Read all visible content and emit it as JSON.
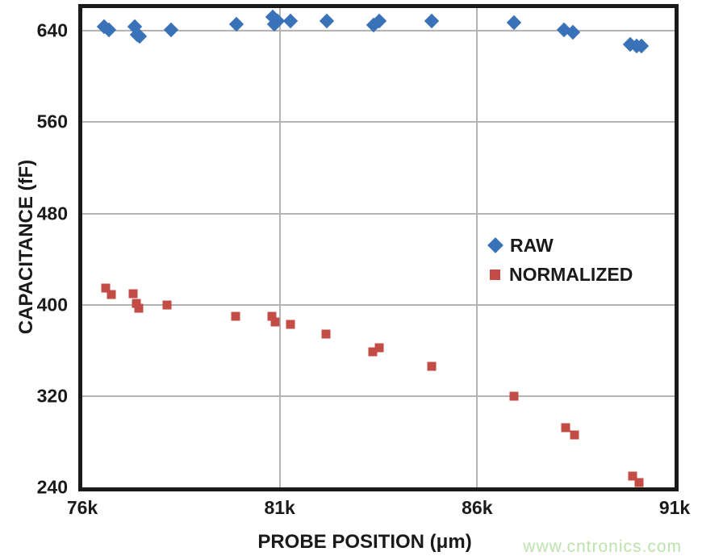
{
  "watermark": "www.cntronics.com",
  "colors": {
    "raw_blue": "#3a72b9",
    "normalized_red": "#c44c46",
    "gridline": "#b3b3b3",
    "axis_frame": "#1a1a1a",
    "watermark_green": "#bde1ab"
  },
  "chart_data": {
    "type": "scatter",
    "xlabel": "PROBE POSITION (μm)",
    "ylabel": "CAPACITANCE (fF)",
    "x_unit_suffix": "k",
    "xlim_k": [
      76,
      91
    ],
    "ylim": [
      240,
      660
    ],
    "x_ticks": [
      {
        "value": 76,
        "label": "76k"
      },
      {
        "value": 81,
        "label": "81k"
      },
      {
        "value": 86,
        "label": "86k"
      },
      {
        "value": 91,
        "label": "91k"
      }
    ],
    "y_ticks": [
      {
        "value": 640,
        "label": "640"
      },
      {
        "value": 560,
        "label": "560"
      },
      {
        "value": 480,
        "label": "480"
      },
      {
        "value": 400,
        "label": "400"
      },
      {
        "value": 320,
        "label": "320"
      },
      {
        "value": 240,
        "label": "240"
      }
    ],
    "x_gridlines_k": [
      81,
      86
    ],
    "y_gridlines": [
      320,
      400,
      480,
      560,
      640
    ],
    "grid": true,
    "legend_position": "inside-right",
    "legend": {
      "items": [
        {
          "name": "RAW",
          "marker": "diamond",
          "color": "#3a72b9"
        },
        {
          "name": "NORMALIZED",
          "marker": "square",
          "color": "#c44c46"
        }
      ]
    },
    "series": [
      {
        "name": "RAW",
        "marker": "diamond",
        "color": "#3a72b9",
        "points_k_fF": [
          [
            76.55,
            644
          ],
          [
            76.68,
            641
          ],
          [
            77.33,
            644
          ],
          [
            77.38,
            637
          ],
          [
            77.46,
            635
          ],
          [
            78.25,
            641
          ],
          [
            79.9,
            646
          ],
          [
            80.82,
            652
          ],
          [
            80.86,
            646
          ],
          [
            80.94,
            649
          ],
          [
            81.27,
            649
          ],
          [
            82.2,
            649
          ],
          [
            83.37,
            645
          ],
          [
            83.53,
            649
          ],
          [
            84.85,
            649
          ],
          [
            86.93,
            647
          ],
          [
            88.2,
            641
          ],
          [
            88.43,
            639
          ],
          [
            89.87,
            628
          ],
          [
            90.03,
            627
          ],
          [
            90.17,
            627
          ]
        ]
      },
      {
        "name": "NORMALIZED",
        "marker": "square",
        "color": "#c44c46",
        "points_k_fF": [
          [
            76.59,
            415
          ],
          [
            76.73,
            409
          ],
          [
            77.28,
            410
          ],
          [
            77.36,
            401
          ],
          [
            77.44,
            397
          ],
          [
            78.15,
            400
          ],
          [
            79.89,
            390
          ],
          [
            80.8,
            390
          ],
          [
            80.88,
            385
          ],
          [
            81.27,
            383
          ],
          [
            82.17,
            374
          ],
          [
            83.35,
            359
          ],
          [
            83.53,
            362
          ],
          [
            84.85,
            346
          ],
          [
            86.93,
            320
          ],
          [
            88.25,
            292
          ],
          [
            88.47,
            286
          ],
          [
            89.93,
            250
          ],
          [
            90.11,
            244
          ]
        ]
      }
    ]
  }
}
